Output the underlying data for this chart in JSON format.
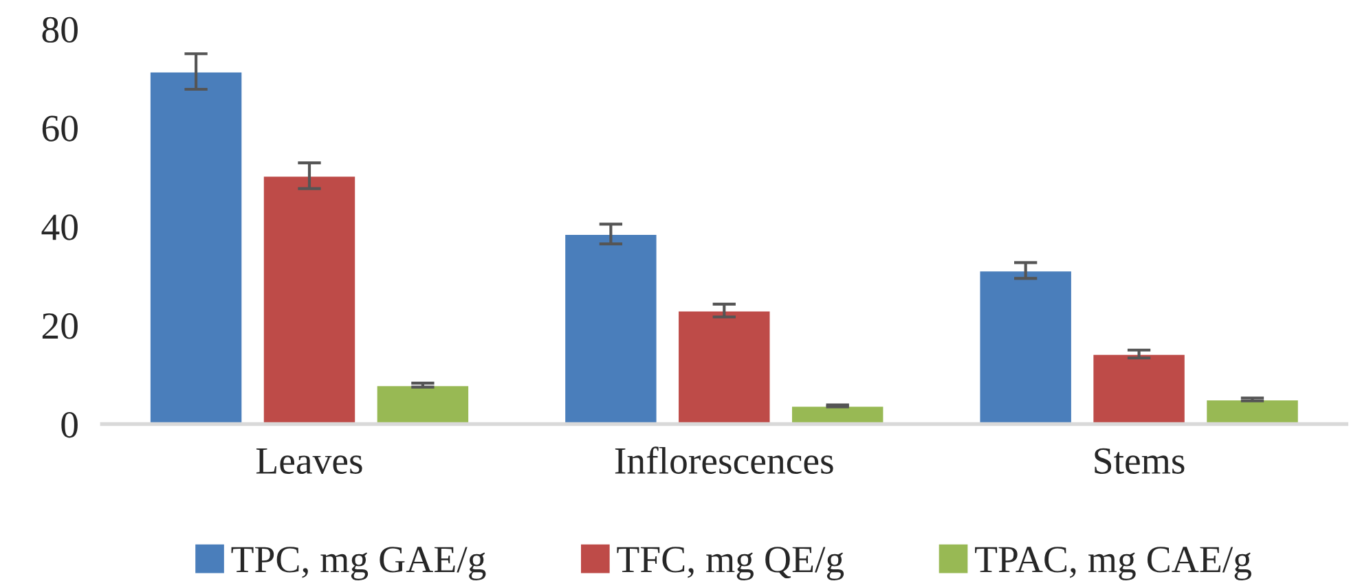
{
  "chart_data": {
    "type": "bar",
    "categories": [
      "Leaves",
      "Inflorescences",
      "Stems"
    ],
    "series": [
      {
        "name": "TPC, mg GAE/g",
        "color": "#4a7ebb",
        "values": [
          71.4,
          38.5,
          31.1
        ],
        "errors": [
          3.6,
          2,
          1.6
        ]
      },
      {
        "name": "TFC, mg QE/g",
        "color": "#be4b48",
        "values": [
          50.3,
          23.0,
          14.2
        ],
        "errors": [
          2.6,
          1.3,
          0.8
        ]
      },
      {
        "name": "TPAC, mg CAE/g",
        "color": "#98b954",
        "values": [
          7.9,
          3.7,
          5.0
        ],
        "errors": [
          0.4,
          0.2,
          0.3
        ]
      }
    ],
    "ylim": [
      0,
      80
    ],
    "yticks": [
      0,
      20,
      40,
      60,
      80
    ],
    "grid": false,
    "legend": "bottom"
  }
}
